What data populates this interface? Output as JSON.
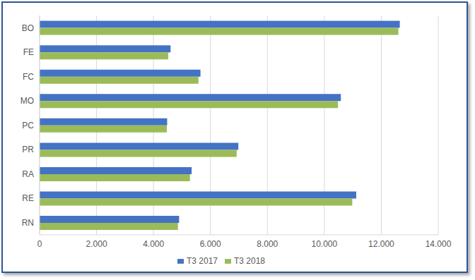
{
  "chart_data": {
    "type": "bar",
    "orientation": "horizontal",
    "categories": [
      "BO",
      "FE",
      "FC",
      "MO",
      "PC",
      "PR",
      "RA",
      "RE",
      "RN"
    ],
    "series": [
      {
        "name": "T3 2017",
        "color": "#4472c4",
        "values": [
          12650,
          4600,
          5650,
          10580,
          4480,
          6980,
          5340,
          11120,
          4900
        ]
      },
      {
        "name": "T3 2018",
        "color": "#9bbb59",
        "values": [
          12600,
          4520,
          5580,
          10480,
          4470,
          6920,
          5280,
          10980,
          4860
        ]
      }
    ],
    "xlim": [
      0,
      14000
    ],
    "xticks": [
      0,
      {
        "value": 2000,
        "label": "2.000"
      },
      {
        "value": 4000,
        "label": "4.000"
      },
      {
        "value": 6000,
        "label": "6.000"
      },
      {
        "value": 8000,
        "label": "8.000"
      },
      {
        "value": 10000,
        "label": "10.000"
      },
      {
        "value": 12000,
        "label": "12.000"
      },
      {
        "value": 14000,
        "label": "14.000"
      }
    ],
    "grid": true,
    "legend": "bottom"
  }
}
